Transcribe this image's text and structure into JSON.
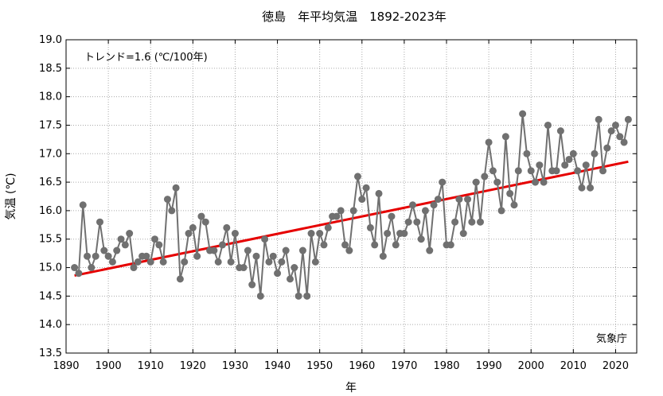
{
  "chart_data": {
    "type": "line",
    "title": "徳島　年平均気温　1892-2023年",
    "xlabel": "年",
    "ylabel": "気温 (℃)",
    "xlim": [
      1890,
      2025
    ],
    "ylim": [
      13.5,
      19.0
    ],
    "x_ticks": [
      "1890",
      "1900",
      "1910",
      "1920",
      "1930",
      "1940",
      "1950",
      "1960",
      "1970",
      "1980",
      "1990",
      "2000",
      "2010",
      "2020"
    ],
    "y_ticks": [
      "13.5",
      "14.0",
      "14.5",
      "15.0",
      "15.5",
      "16.0",
      "16.5",
      "17.0",
      "17.5",
      "18.0",
      "18.5",
      "19.0"
    ],
    "grid": true,
    "colors": {
      "series": "#707070",
      "trend": "#e60000",
      "grid": "#aaaaaa"
    },
    "trend_label": "トレンド=1.6 (℃/100年)",
    "source": "気象庁",
    "series": [
      {
        "x": [
          1892,
          1893,
          1894,
          1895,
          1896,
          1897,
          1898,
          1899,
          1900,
          1901,
          1902,
          1903,
          1904,
          1905,
          1906,
          1907,
          1908,
          1909,
          1910,
          1911,
          1912,
          1913,
          1914,
          1915,
          1916,
          1917,
          1918,
          1919,
          1920,
          1921,
          1922,
          1923,
          1924,
          1925,
          1926,
          1927,
          1928,
          1929,
          1930,
          1931,
          1932,
          1933,
          1934,
          1935,
          1936,
          1937,
          1938,
          1939,
          1940,
          1941,
          1942,
          1943,
          1944,
          1945,
          1946,
          1947,
          1948,
          1949,
          1950,
          1951,
          1952,
          1953,
          1954,
          1955,
          1956,
          1957,
          1958,
          1959,
          1960,
          1961,
          1962,
          1963,
          1964,
          1965,
          1966,
          1967,
          1968,
          1969,
          1970,
          1971,
          1972,
          1973,
          1974,
          1975,
          1976,
          1977,
          1978,
          1979,
          1980,
          1981,
          1982,
          1983,
          1984,
          1985,
          1986,
          1987,
          1988,
          1989,
          1990,
          1991,
          1992,
          1993,
          1994,
          1995,
          1996,
          1997,
          1998,
          1999,
          2000,
          2001,
          2002,
          2003,
          2004,
          2005,
          2006,
          2007,
          2008,
          2009,
          2010,
          2011,
          2012,
          2013,
          2014,
          2015,
          2016,
          2017,
          2018,
          2019,
          2020,
          2021,
          2022,
          2023
        ],
        "y": [
          15.0,
          14.9,
          16.1,
          15.2,
          15.0,
          15.2,
          15.8,
          15.3,
          15.2,
          15.1,
          15.3,
          15.5,
          15.4,
          15.6,
          15.0,
          15.1,
          15.2,
          15.2,
          15.1,
          15.5,
          15.4,
          15.1,
          16.2,
          16.0,
          16.4,
          14.8,
          15.1,
          15.6,
          15.7,
          15.2,
          15.9,
          15.8,
          15.3,
          15.3,
          15.1,
          15.4,
          15.7,
          15.1,
          15.6,
          15.0,
          15.0,
          15.3,
          14.7,
          15.2,
          14.5,
          15.5,
          15.1,
          15.2,
          14.9,
          15.1,
          15.3,
          14.8,
          15.0,
          14.5,
          15.3,
          14.5,
          15.6,
          15.1,
          15.6,
          15.4,
          15.7,
          15.9,
          15.9,
          16.0,
          15.4,
          15.3,
          16.0,
          16.6,
          16.2,
          16.4,
          15.7,
          15.4,
          16.3,
          15.2,
          15.6,
          15.9,
          15.4,
          15.6,
          15.6,
          15.8,
          16.1,
          15.8,
          15.5,
          16.0,
          15.3,
          16.1,
          16.2,
          16.5,
          15.4,
          15.4,
          15.8,
          16.2,
          15.6,
          16.2,
          15.8,
          16.5,
          15.8,
          16.6,
          17.2,
          16.7,
          16.5,
          16.0,
          17.3,
          16.3,
          16.1,
          16.7,
          17.7,
          17.0,
          16.7,
          16.5,
          16.8,
          16.5,
          17.5,
          16.7,
          16.7,
          17.4,
          16.8,
          16.9,
          17.0,
          16.7,
          16.4,
          16.8,
          16.4,
          17.0,
          17.6,
          16.7,
          17.1,
          17.4,
          17.5,
          17.3,
          17.2,
          17.6
        ]
      }
    ],
    "trend": {
      "x": [
        1892,
        2023
      ],
      "y": [
        14.86,
        16.86
      ]
    }
  }
}
